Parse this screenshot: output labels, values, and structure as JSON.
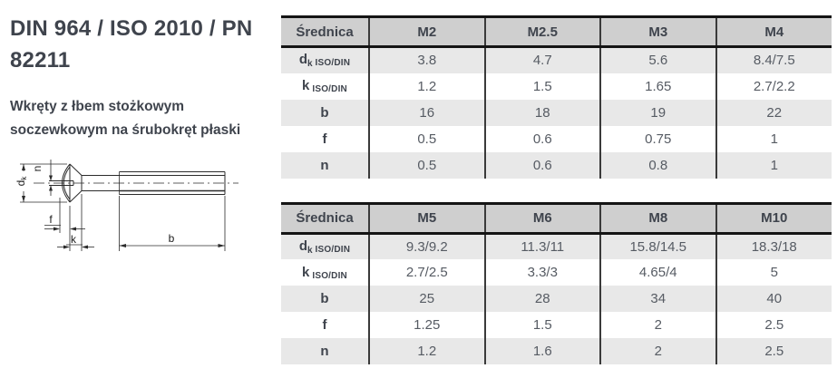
{
  "page": {
    "title": {
      "line1": "DIN 964 / ISO 2010 / PN",
      "line2": "82211"
    },
    "subtitle": {
      "line1": "Wkręty z łbem stożkowym",
      "line2": "soczewkowym na śrubokręt płaski"
    }
  },
  "diagram": {
    "name": "countersunk-raised-head-slotted-screw-drawing",
    "labels": {
      "d_main": "d",
      "d_sub": "k",
      "n": "n",
      "f": "f",
      "k": "k",
      "b": "b"
    }
  },
  "tables": [
    {
      "header": [
        "Średnica",
        "M2",
        "M2.5",
        "M3",
        "M4"
      ],
      "rows": [
        {
          "label": {
            "main": "d",
            "sub": "k",
            "suffix": "ISO/DIN"
          },
          "values": [
            "3.8",
            "4.7",
            "5.6",
            "8.4/7.5"
          ]
        },
        {
          "label": {
            "main": "k",
            "sub": "",
            "suffix": "ISO/DIN"
          },
          "values": [
            "1.2",
            "1.5",
            "1.65",
            "2.7/2.2"
          ]
        },
        {
          "label": {
            "main": "b",
            "sub": "",
            "suffix": ""
          },
          "values": [
            "16",
            "18",
            "19",
            "22"
          ]
        },
        {
          "label": {
            "main": "f",
            "sub": "",
            "suffix": ""
          },
          "values": [
            "0.5",
            "0.6",
            "0.75",
            "1"
          ]
        },
        {
          "label": {
            "main": "n",
            "sub": "",
            "suffix": ""
          },
          "values": [
            "0.5",
            "0.6",
            "0.8",
            "1"
          ]
        }
      ]
    },
    {
      "header": [
        "Średnica",
        "M5",
        "M6",
        "M8",
        "M10"
      ],
      "rows": [
        {
          "label": {
            "main": "d",
            "sub": "k",
            "suffix": "ISO/DIN"
          },
          "values": [
            "9.3/9.2",
            "11.3/11",
            "15.8/14.5",
            "18.3/18"
          ]
        },
        {
          "label": {
            "main": "k",
            "sub": "",
            "suffix": "ISO/DIN"
          },
          "values": [
            "2.7/2.5",
            "3.3/3",
            "4.65/4",
            "5"
          ]
        },
        {
          "label": {
            "main": "b",
            "sub": "",
            "suffix": ""
          },
          "values": [
            "25",
            "28",
            "34",
            "40"
          ]
        },
        {
          "label": {
            "main": "f",
            "sub": "",
            "suffix": ""
          },
          "values": [
            "1.25",
            "1.5",
            "2",
            "2.5"
          ]
        },
        {
          "label": {
            "main": "n",
            "sub": "",
            "suffix": ""
          },
          "values": [
            "1.2",
            "1.6",
            "2",
            "2.5"
          ]
        }
      ]
    }
  ],
  "colors": {
    "header_bg": "#cfcfcf",
    "shade_bg": "#e8e8e8",
    "border_dark": "#141414",
    "separator": "#3a3a3a",
    "text_dark": "#3f444d",
    "text_value": "#565b63",
    "drawing_stroke": "#2b2b2b"
  }
}
